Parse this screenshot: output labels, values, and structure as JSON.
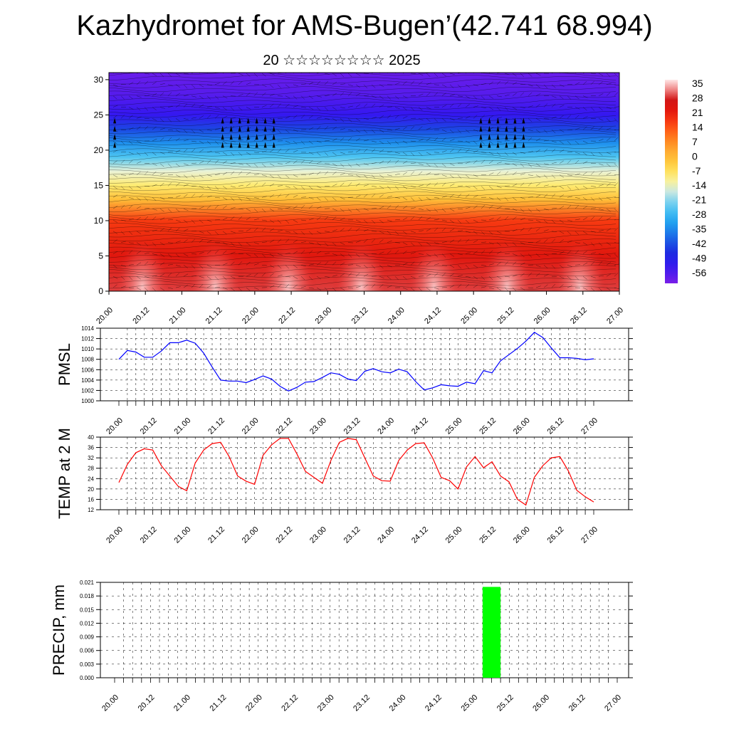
{
  "title": "Kazhydromet for AMS-Bugen’(42.741 68.994)",
  "subtitle": "20 ☆☆☆☆☆☆☆☆ 2025",
  "time_labels": [
    "20.00",
    "20.12",
    "21.00",
    "21.12",
    "22.00",
    "22.12",
    "23.00",
    "23.12",
    "24.00",
    "24.12",
    "25.00",
    "25.12",
    "26.00",
    "26.12",
    "27.00"
  ],
  "colors": {
    "pmsl": "#0000ff",
    "temp": "#ff0000",
    "precip": "#00ff00",
    "grid": "#000000"
  },
  "chart_data": [
    {
      "type": "heatmap",
      "title": "",
      "ylabel": "",
      "ylim": [
        0,
        30
      ],
      "y_ticks": [
        0,
        5,
        10,
        15,
        20,
        25,
        30
      ],
      "colorbar_labels": [
        "35",
        "28",
        "21",
        "14",
        "7",
        "0",
        "-7",
        "-14",
        "-21",
        "-28",
        "-35",
        "-42",
        "-49",
        "-56"
      ],
      "colorbar_range": [
        -60,
        38
      ],
      "temperature_profile_by_height": [
        {
          "height": 0,
          "value": 30
        },
        {
          "height": 5,
          "value": 24
        },
        {
          "height": 10,
          "value": 18
        },
        {
          "height": 13,
          "value": 0
        },
        {
          "height": 15,
          "value": -8
        },
        {
          "height": 17,
          "value": -14
        },
        {
          "height": 19,
          "value": -24
        },
        {
          "height": 21,
          "value": -33
        },
        {
          "height": 23,
          "value": -42
        },
        {
          "height": 25,
          "value": -52
        },
        {
          "height": 28,
          "value": -56
        },
        {
          "height": 31,
          "value": -58
        }
      ],
      "overlay": "wind barbs"
    },
    {
      "type": "line",
      "ylabel": "PMSL",
      "ylim": [
        1000,
        1014
      ],
      "y_ticks": [
        1000,
        1002,
        1004,
        1006,
        1008,
        1010,
        1012,
        1014
      ],
      "series": [
        {
          "values": [
            1008.0,
            1009.7,
            1009.4,
            1008.4,
            1008.4,
            1009.6,
            1011.2,
            1011.2,
            1011.7,
            1011.1,
            1009.2,
            1006.5,
            1004.0,
            1003.8,
            1003.8,
            1003.5,
            1004.1,
            1004.8,
            1004.2,
            1002.8,
            1001.9,
            1002.6,
            1003.6,
            1003.7,
            1004.5,
            1005.4,
            1005.1,
            1004.2,
            1003.9,
            1005.7,
            1006.2,
            1005.6,
            1005.4,
            1006.1,
            1005.6,
            1003.7,
            1002.1,
            1002.5,
            1003.1,
            1002.9,
            1002.8,
            1003.6,
            1003.3,
            1005.8,
            1005.4,
            1007.7,
            1008.9,
            1010.1,
            1011.5,
            1013.2,
            1012.2,
            1010.2,
            1008.3,
            1008.3,
            1008.2,
            1007.9,
            1008.1
          ]
        }
      ]
    },
    {
      "type": "line",
      "ylabel": "TEMP at 2 M",
      "ylim": [
        12,
        40
      ],
      "y_ticks": [
        12,
        16,
        20,
        24,
        28,
        32,
        36,
        40
      ],
      "series": [
        {
          "values": [
            22.5,
            29.5,
            34.0,
            35.5,
            35.0,
            29.0,
            25.0,
            21.0,
            19.3,
            30.0,
            35.0,
            37.5,
            38.0,
            32.5,
            25.0,
            23.0,
            21.8,
            33.0,
            37.0,
            39.5,
            39.5,
            33.5,
            26.8,
            24.5,
            22.2,
            31.0,
            38.0,
            39.5,
            39.0,
            32.0,
            25.0,
            23.2,
            23.0,
            31.0,
            35.0,
            37.5,
            37.8,
            32.0,
            24.5,
            23.2,
            20.0,
            28.5,
            32.5,
            28.2,
            30.5,
            25.0,
            22.8,
            16.0,
            13.8,
            24.5,
            29.0,
            32.0,
            32.5,
            27.0,
            19.5,
            17.0,
            15.0
          ]
        }
      ]
    },
    {
      "type": "bar",
      "ylabel": "PRECIP, mm",
      "ylim": [
        0,
        0.021
      ],
      "y_ticks": [
        "0.000",
        "0.003",
        "0.006",
        "0.009",
        "0.012",
        "0.015",
        "0.018",
        "0.021"
      ],
      "bars": [
        {
          "from_hour": 123,
          "to_hour": 129,
          "value": 0.02
        }
      ]
    }
  ]
}
